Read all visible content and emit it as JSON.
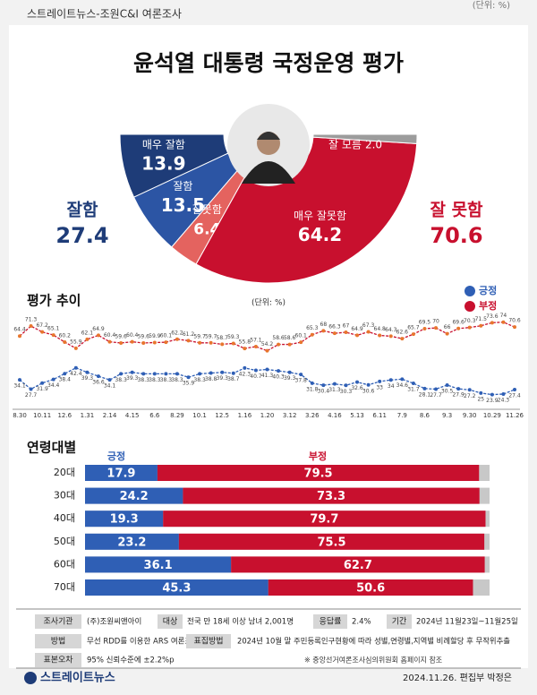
{
  "header": {
    "source": "스트레이트뉴스-조원C&I 여론조사",
    "unit": "(단위: %)"
  },
  "chart_data": [
    {
      "type": "pie",
      "shape": "half-donut",
      "title": "윤석열 대통령 국정운영 평가",
      "categories": [
        "매우 잘함",
        "잘함",
        "잘못함",
        "매우 잘못함",
        "잘 모름"
      ],
      "values": [
        13.9,
        13.5,
        6.4,
        64.2,
        2.0
      ],
      "value_labels": [
        "13.9",
        "13.5",
        "6.4",
        "64.2",
        "2.0"
      ],
      "colors": [
        "#1e3c78",
        "#2c55a4",
        "#e4635f",
        "#c8102e",
        "#9c9c9c"
      ],
      "totals": [
        {
          "label": "잘함",
          "value": 27.4,
          "color": "#1e3c78"
        },
        {
          "label": "잘 못함",
          "value": 70.6,
          "color": "#c8102e"
        }
      ]
    },
    {
      "type": "line",
      "title": "평가 추이",
      "unit": "(단위: %)",
      "categories": [
        "8.30",
        null,
        "10.11",
        null,
        "12.6",
        null,
        "1.31",
        null,
        "2.14",
        null,
        "4.15",
        null,
        "6.6",
        null,
        "8.29",
        null,
        "10.1",
        null,
        "12.5",
        null,
        "1.16",
        null,
        "1.20",
        null,
        "3.12",
        null,
        "3.26",
        null,
        "4.16",
        null,
        "5.13",
        null,
        "6.11",
        null,
        "7.9",
        null,
        "8.6",
        null,
        "9.3",
        null,
        "9.30",
        null,
        "10.29",
        null,
        "11.26"
      ],
      "ylim": [
        15,
        80
      ],
      "series": [
        {
          "name": "긍정",
          "color": "#2f5fb5",
          "values": [
            34.1,
            27.7,
            31.9,
            34.4,
            38.4,
            42.4,
            39.3,
            36.6,
            34.1,
            38.3,
            39.3,
            38.3,
            38.3,
            38.3,
            38.3,
            35.9,
            38.3,
            38.8,
            39.3,
            38.7,
            42.3,
            40.7,
            41.3,
            40.3,
            39.3,
            37.8,
            31.8,
            30.4,
            31.3,
            30.3,
            32.6,
            30.6,
            33,
            34,
            34.6,
            31.7,
            28.1,
            27.7,
            30.5,
            27.9,
            27.2,
            25,
            23.9,
            24.3,
            27.4
          ]
        },
        {
          "name": "부정",
          "color": "#c8102e",
          "marker_color": "#e8762d",
          "values": [
            64.4,
            71.3,
            67.2,
            65.1,
            60.2,
            55.9,
            62.1,
            64.9,
            60.4,
            59.6,
            60.4,
            59.6,
            59.9,
            60.1,
            62.2,
            61.2,
            59.7,
            59.7,
            58.7,
            59.3,
            55.8,
            57.1,
            54.2,
            58.6,
            58.6,
            60.1,
            65.3,
            68,
            66.3,
            67,
            64.9,
            67.3,
            64.8,
            64.3,
            62.6,
            65.7,
            69.5,
            70,
            66,
            69.6,
            70.3,
            71.5,
            73.6,
            74,
            70.6
          ]
        }
      ]
    },
    {
      "type": "bar",
      "orientation": "horizontal",
      "stacked": true,
      "title": "연령대별",
      "categories": [
        "20대",
        "30대",
        "40대",
        "50대",
        "60대",
        "70대"
      ],
      "xlim": [
        0,
        100
      ],
      "series": [
        {
          "name": "긍정",
          "color": "#2f5fb5",
          "values": [
            17.9,
            24.2,
            19.3,
            23.2,
            36.1,
            45.3
          ]
        },
        {
          "name": "부정",
          "color": "#c8102e",
          "values": [
            79.5,
            73.3,
            79.7,
            75.5,
            62.7,
            50.6
          ]
        }
      ]
    }
  ],
  "survey": [
    {
      "label": "조사기관",
      "value": "(주)조원씨앤아이"
    },
    {
      "label": "대상",
      "value": "전국 만 18세 이상 남녀 2,001명"
    },
    {
      "label": "응답률",
      "value": "2.4%"
    },
    {
      "label": "기간",
      "value": "2024년 11월23일~11월25일"
    },
    {
      "label": "방법",
      "value": "무선 RDD를 이용한 ARS 여론조사"
    },
    {
      "label": "표집방법",
      "value": "2024년 10월 말 주민등록인구현황에 따라 성별,연령별,지역별 비례할당 후 무작위추출"
    },
    {
      "label": "표본오차",
      "value": "95% 신뢰수준에 ±2.2%p"
    }
  ],
  "note": "※ 중앙선거여론조사심의위원회 홈페이지 참조",
  "footer": {
    "logo": "스트레이트뉴스",
    "credit": "2024.11.26. 편집부 박정은"
  }
}
